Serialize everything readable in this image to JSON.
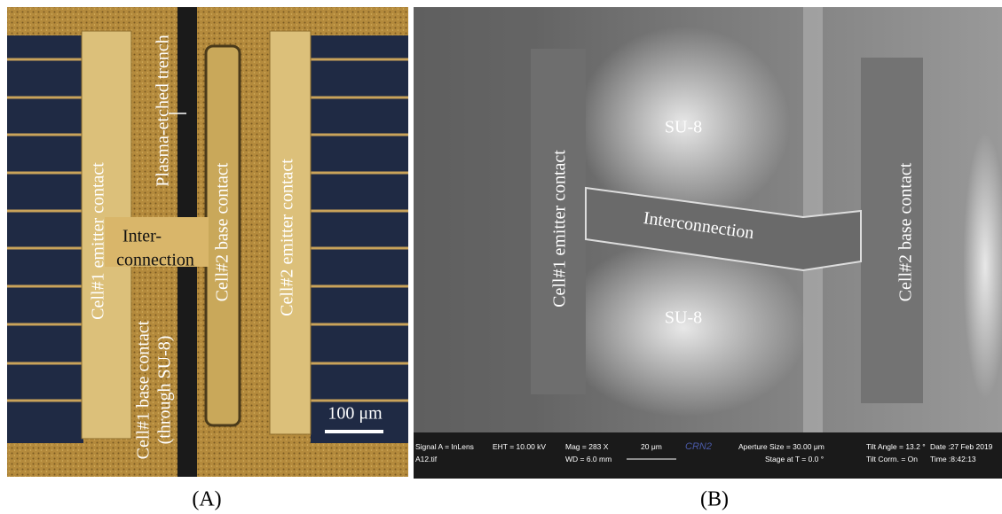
{
  "panel_a": {
    "caption": "(A)",
    "labels": {
      "trench": "Plasma-etched trench",
      "cell1_emitter": "Cell#1 emitter contact",
      "inter_1": "Inter-",
      "inter_2": "connection",
      "cell2_base": "Cell#2 base contact",
      "cell2_emitter": "Cell#2 emitter contact",
      "cell1_base_1": "Cell#1 base contact",
      "cell1_base_2": "(through SU-8)",
      "scale": "100 μm"
    }
  },
  "panel_b": {
    "caption": "(B)",
    "labels": {
      "su8_top": "SU-8",
      "su8_bottom": "SU-8",
      "cell1_emitter": "Cell#1 emitter contact",
      "interconnection": "Interconnection",
      "cell2_base": "Cell#2 base contact"
    },
    "info_bar": {
      "signal": "Signal A = InLens",
      "file": "A12.tif",
      "eht": "EHT = 10.00 kV",
      "mag": "Mag =  283 X",
      "wd": "WD =  6.0 mm",
      "scale": "20 μm",
      "logo": "CRN2",
      "aperture": "Aperture Size = 30.00 μm",
      "stage": "Stage at T =   0.0 °",
      "tilt_angle": "Tilt Angle =  13.2 °",
      "tilt_corr": "Tilt Corrn. = On",
      "date": "Date :27 Feb 2019",
      "time": "Time :8:42:13"
    }
  }
}
